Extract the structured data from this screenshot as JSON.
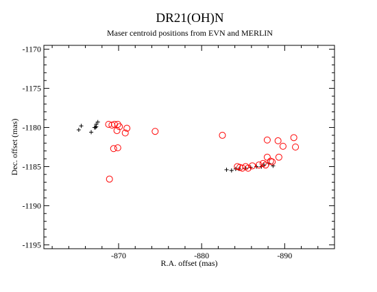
{
  "chart_data": {
    "type": "scatter",
    "title": "DR21(OH)N",
    "subtitle": "Maser centroid positions from EVN and MERLIN",
    "xlabel": "R.A. offset (mas)",
    "ylabel": "Dec. offset (mas)",
    "xlim": [
      -861,
      -896
    ],
    "ylim": [
      -1195.5,
      -1169.5
    ],
    "x_ticks": [
      -870,
      -880,
      -890
    ],
    "x_minor_ticks": [
      -862,
      -864,
      -866,
      -868,
      -872,
      -874,
      -876,
      -878,
      -882,
      -884,
      -886,
      -888,
      -892,
      -894
    ],
    "y_ticks": [
      -1170,
      -1175,
      -1180,
      -1185,
      -1190,
      -1195
    ],
    "y_minor_ticks": [
      -1171,
      -1172,
      -1173,
      -1174,
      -1176,
      -1177,
      -1178,
      -1179,
      -1181,
      -1182,
      -1183,
      -1184,
      -1186,
      -1187,
      -1188,
      -1189,
      -1191,
      -1192,
      -1193,
      -1194
    ],
    "grid": false,
    "legend": "none",
    "series": [
      {
        "marker": "plus",
        "color": "#000000",
        "points": [
          [
            -865.2,
            -1180.3
          ],
          [
            -865.5,
            -1179.8
          ],
          [
            -866.7,
            -1180.6
          ],
          [
            -867.1,
            -1180.0
          ],
          [
            -867.3,
            -1179.6
          ],
          [
            -867.5,
            -1179.3
          ],
          [
            -867.3,
            -1179.9
          ],
          [
            -867.2,
            -1180.0
          ],
          [
            -883.0,
            -1185.4
          ],
          [
            -883.6,
            -1185.5
          ],
          [
            -884.1,
            -1185.3
          ],
          [
            -884.5,
            -1185.3
          ],
          [
            -885.3,
            -1185.2
          ],
          [
            -885.9,
            -1185.1
          ],
          [
            -886.6,
            -1185.0
          ],
          [
            -887.2,
            -1185.0
          ],
          [
            -887.5,
            -1184.8
          ],
          [
            -888.1,
            -1184.6
          ],
          [
            -888.6,
            -1184.9
          ]
        ]
      },
      {
        "marker": "circle",
        "color": "#ff0000",
        "points": [
          [
            -868.8,
            -1179.6
          ],
          [
            -869.2,
            -1179.7
          ],
          [
            -869.5,
            -1179.6
          ],
          [
            -869.9,
            -1179.6
          ],
          [
            -870.1,
            -1179.9
          ],
          [
            -869.8,
            -1180.4
          ],
          [
            -868.9,
            -1186.6
          ],
          [
            -869.4,
            -1182.7
          ],
          [
            -869.9,
            -1182.6
          ],
          [
            -870.8,
            -1180.7
          ],
          [
            -871.0,
            -1180.1
          ],
          [
            -874.4,
            -1180.5
          ],
          [
            -882.5,
            -1181.0
          ],
          [
            -884.3,
            -1185.0
          ],
          [
            -884.6,
            -1185.1
          ],
          [
            -884.9,
            -1185.2
          ],
          [
            -885.3,
            -1185.0
          ],
          [
            -885.6,
            -1185.2
          ],
          [
            -886.1,
            -1184.9
          ],
          [
            -886.9,
            -1184.8
          ],
          [
            -887.4,
            -1184.6
          ],
          [
            -887.7,
            -1184.8
          ],
          [
            -887.9,
            -1183.8
          ],
          [
            -888.3,
            -1184.3
          ],
          [
            -888.5,
            -1184.4
          ],
          [
            -887.9,
            -1181.6
          ],
          [
            -889.2,
            -1181.7
          ],
          [
            -889.3,
            -1183.8
          ],
          [
            -889.8,
            -1182.4
          ],
          [
            -891.1,
            -1181.3
          ],
          [
            -891.3,
            -1182.5
          ]
        ]
      }
    ]
  }
}
